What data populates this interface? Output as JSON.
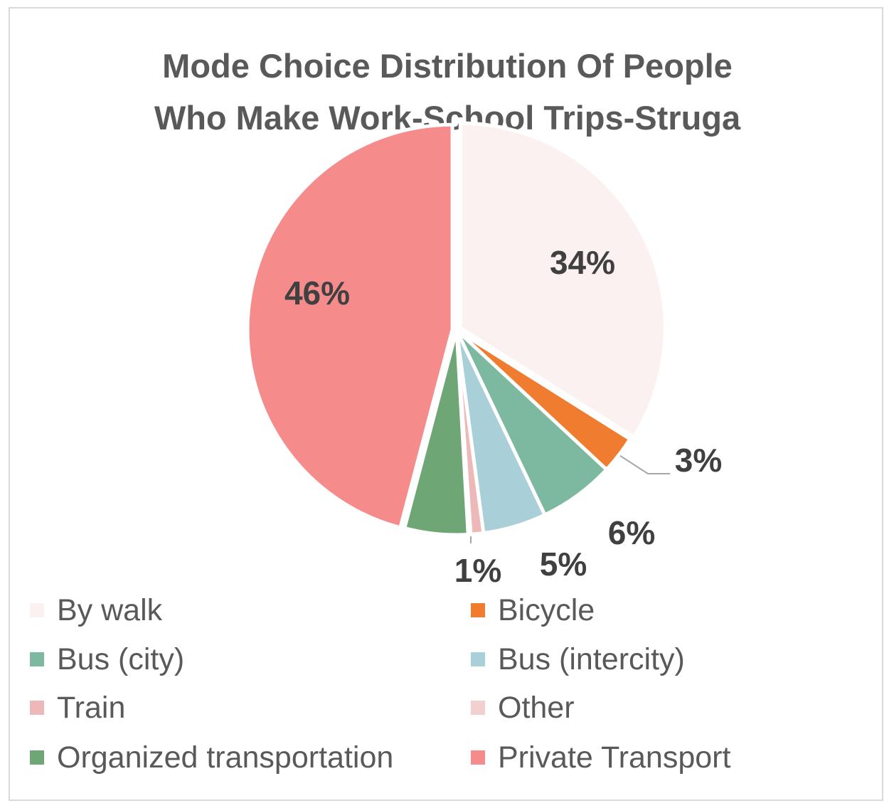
{
  "chart_data": {
    "type": "pie",
    "title": "Mode Choice Distribution Of People Who Make Work-School Trips-Struga",
    "title_lines": [
      "Mode Choice Distribution Of People",
      "Who Make Work-School Trips-Struga"
    ],
    "start_angle_deg": 0,
    "direction": "clockwise",
    "legend_position": "bottom",
    "slices": [
      {
        "name": "By walk",
        "value": 34,
        "label": "34%",
        "color": "#fbf1f1",
        "show_label": true
      },
      {
        "name": "Bicycle",
        "value": 3,
        "label": "3%",
        "color": "#f07c30",
        "show_label": true
      },
      {
        "name": "Bus (city)",
        "value": 6,
        "label": "6%",
        "color": "#7db9a0",
        "show_label": true
      },
      {
        "name": "Bus (intercity)",
        "value": 5,
        "label": "5%",
        "color": "#a9cfd8",
        "show_label": true
      },
      {
        "name": "Train",
        "value": 1,
        "label": "1%",
        "color": "#eeb8b8",
        "show_label": true
      },
      {
        "name": "Other",
        "value": 0.2,
        "label": "",
        "color": "#f2d0d0",
        "show_label": false
      },
      {
        "name": "Organized transportation",
        "value": 5,
        "label": "",
        "color": "#6ea676",
        "show_label": false
      },
      {
        "name": "Private Transport",
        "value": 46,
        "label": "46%",
        "color": "#f68b8b",
        "show_label": true
      }
    ]
  }
}
